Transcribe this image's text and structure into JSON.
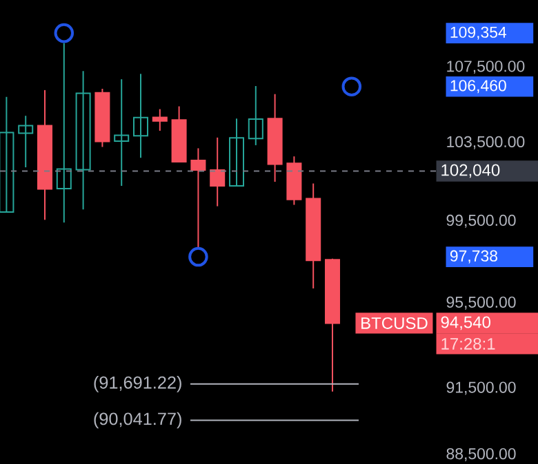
{
  "chart_data": {
    "type": "candlestick",
    "log": "y",
    "grid": false,
    "categories": [
      null,
      null,
      null,
      null,
      null,
      null,
      null,
      null,
      null,
      null,
      null,
      null,
      null,
      null,
      null,
      null,
      null,
      null,
      null
    ],
    "ohlc": [
      [
        99960,
        105910,
        99960,
        104030
      ],
      [
        104000,
        104910,
        102230,
        104390
      ],
      [
        104390,
        106270,
        99570,
        101120
      ],
      [
        101140,
        108810,
        99430,
        102140
      ],
      [
        102110,
        107290,
        100090,
        106100
      ],
      [
        106130,
        106340,
        103280,
        103560
      ],
      [
        103580,
        106850,
        101280,
        103890
      ],
      [
        103860,
        107140,
        102720,
        104810
      ],
      [
        104830,
        105260,
        104120,
        104640
      ],
      [
        104690,
        105410,
        102510,
        102510
      ],
      [
        102580,
        103210,
        98200,
        102090
      ],
      [
        102090,
        103770,
        100250,
        101280
      ],
      [
        101280,
        104760,
        101280,
        103750
      ],
      [
        103720,
        106490,
        103370,
        104740
      ],
      [
        104760,
        106060,
        101490,
        102390
      ],
      [
        102440,
        102790,
        100320,
        100590
      ],
      [
        100640,
        101400,
        96200,
        97560
      ],
      [
        97600,
        97650,
        91350,
        94540
      ],
      null
    ],
    "colors": [
      "#26a69a",
      "#26a69a",
      "#f7525f",
      "#26a69a",
      "#26a69a",
      "#f7525f",
      "#26a69a",
      "#26a69a",
      "#f7525f",
      "#f7525f",
      "#f7525f",
      "#f7525f",
      "#26a69a",
      "#26a69a",
      "#f7525f",
      "#f7525f",
      "#f7525f",
      "#f7525f",
      null
    ],
    "series": [
      {
        "type": "scatter",
        "color": "#2154e6",
        "marker": "circle",
        "values": [
          null,
          null,
          null,
          109354,
          null,
          null,
          null,
          null,
          null,
          null,
          97738,
          null,
          null,
          null,
          null,
          null,
          null,
          null,
          106460
        ]
      }
    ],
    "ylim": [
      88100,
      111200
    ],
    "yticks": [
      {
        "value": 88500,
        "label": "88,500.00"
      },
      {
        "value": 91500,
        "label": "91,500.00"
      },
      {
        "value": 95500,
        "label": "95,500.00"
      },
      {
        "value": 97738,
        "label": "97,738"
      },
      {
        "value": 99500,
        "label": "99,500.00"
      },
      {
        "value": 103500,
        "label": "103,500.00"
      },
      {
        "value": 106460,
        "label": "106,460"
      },
      {
        "value": 107500,
        "label": "107,500.00"
      },
      {
        "value": 109354,
        "label": "109,354"
      }
    ],
    "ref_lines": [
      {
        "axis": "y",
        "value": 102040,
        "label": "102,040",
        "color": "#787b86",
        "line_style": "dashed"
      },
      {
        "axis": "y",
        "value": 91691.22,
        "label": "(91,691.22)",
        "color": "#b2b5be",
        "line_style": "solid"
      },
      {
        "axis": "y",
        "value": 90041.77,
        "label": "(90,041.77)",
        "color": "#b2b5be",
        "line_style": "solid"
      }
    ],
    "annotations": [
      "94,540",
      "17:28:1",
      "BTCUSD"
    ]
  }
}
